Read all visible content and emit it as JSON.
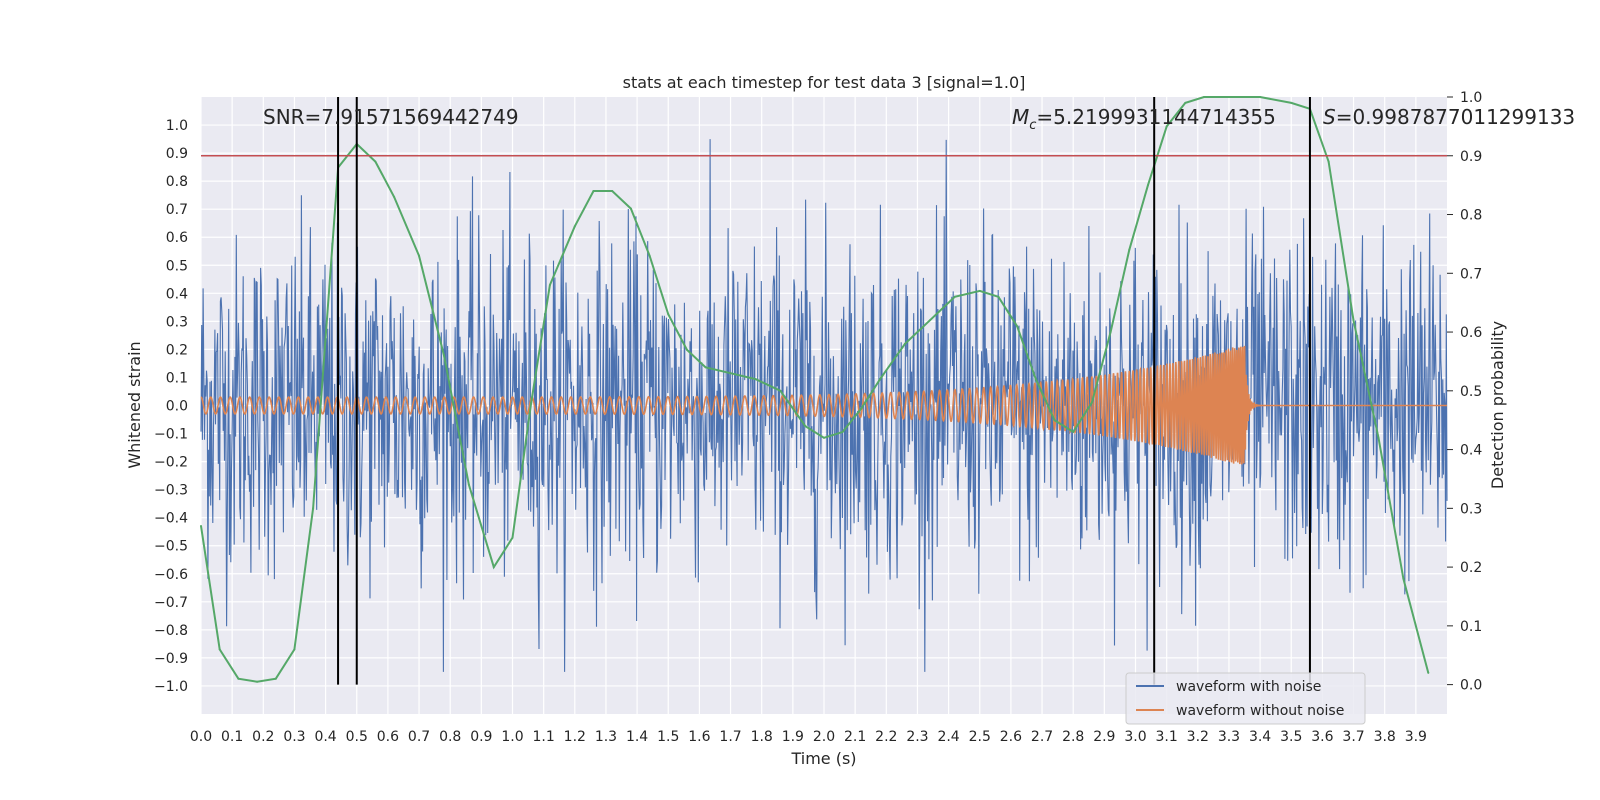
{
  "colors": {
    "noise": "#4c72b0",
    "clean": "#dd8452",
    "prob": "#55a868",
    "threshold": "#c44e52",
    "marker": "#000000",
    "background": "#eaeaf2",
    "grid": "#ffffff"
  },
  "chart_data": {
    "type": "line",
    "title": "stats at each timestep for test data 3 [signal=1.0]",
    "xlabel": "Time (s)",
    "ylabel": "Whitened strain",
    "y2label": "Detection probability",
    "xlim": [
      0.0,
      4.0
    ],
    "ylim": [
      -1.1,
      1.1
    ],
    "y2lim": [
      -0.05,
      1.0
    ],
    "xticks": [
      "0.0",
      "0.1",
      "0.2",
      "0.3",
      "0.4",
      "0.5",
      "0.6",
      "0.7",
      "0.8",
      "0.9",
      "1.0",
      "1.1",
      "1.2",
      "1.3",
      "1.4",
      "1.5",
      "1.6",
      "1.7",
      "1.8",
      "1.9",
      "2.0",
      "2.1",
      "2.2",
      "2.3",
      "2.4",
      "2.5",
      "2.6",
      "2.7",
      "2.8",
      "2.9",
      "3.0",
      "3.1",
      "3.2",
      "3.3",
      "3.4",
      "3.5",
      "3.6",
      "3.7",
      "3.8",
      "3.9"
    ],
    "yticks": [
      "1.0",
      "0.9",
      "0.8",
      "0.7",
      "0.6",
      "0.5",
      "0.4",
      "0.3",
      "0.2",
      "0.1",
      "0.0",
      "−0.1",
      "−0.2",
      "−0.3",
      "−0.4",
      "−0.5",
      "−0.6",
      "−0.7",
      "−0.8",
      "−0.9",
      "−1.0"
    ],
    "y2ticks": [
      "1.0",
      "0.9",
      "0.8",
      "0.7",
      "0.6",
      "0.5",
      "0.4",
      "0.3",
      "0.2",
      "0.1",
      "0.0"
    ],
    "threshold": 0.9,
    "vlines": [
      0.44,
      0.5,
      3.06,
      3.56
    ],
    "annotations": {
      "snr": "SNR=7.91571569442749",
      "mc_symbol": "M",
      "mc_sub": "c",
      "mc_value": "=5.2199931144714355",
      "s_symbol": "S",
      "s_value": "=0.9987877011299133"
    },
    "series": [
      {
        "name": "waveform with noise",
        "description": "dense noisy strain, amplitude mostly within ±0.6 with spikes to ±0.95",
        "amplitude_typical": 0.3,
        "amplitude_max": 0.95
      },
      {
        "name": "waveform without noise",
        "description": "chirp signal, amplitude 0.03 rising to 0.22, merger near 3.35 s then ringdown to 0",
        "amp_start": 0.03,
        "amp_peak": 0.22,
        "merger_time": 3.35,
        "freq_start_hz": 32,
        "freq_end_hz": 160
      },
      {
        "name": "Detection probability",
        "axis": "right",
        "x": [
          0.0,
          0.06,
          0.12,
          0.18,
          0.24,
          0.3,
          0.36,
          0.44,
          0.5,
          0.56,
          0.62,
          0.7,
          0.78,
          0.86,
          0.94,
          1.0,
          1.06,
          1.12,
          1.2,
          1.26,
          1.32,
          1.38,
          1.44,
          1.5,
          1.56,
          1.62,
          1.7,
          1.78,
          1.86,
          1.94,
          2.0,
          2.06,
          2.12,
          2.18,
          2.26,
          2.34,
          2.42,
          2.5,
          2.56,
          2.62,
          2.68,
          2.74,
          2.8,
          2.86,
          2.92,
          2.98,
          3.04,
          3.1,
          3.16,
          3.22,
          3.3,
          3.4,
          3.5,
          3.56,
          3.62,
          3.7,
          3.78,
          3.86,
          3.94
        ],
        "values": [
          0.27,
          0.06,
          0.01,
          0.005,
          0.01,
          0.06,
          0.3,
          0.88,
          0.92,
          0.89,
          0.83,
          0.73,
          0.56,
          0.34,
          0.2,
          0.25,
          0.48,
          0.68,
          0.78,
          0.84,
          0.84,
          0.81,
          0.73,
          0.63,
          0.57,
          0.54,
          0.53,
          0.52,
          0.5,
          0.44,
          0.42,
          0.43,
          0.47,
          0.52,
          0.58,
          0.62,
          0.66,
          0.67,
          0.66,
          0.61,
          0.52,
          0.45,
          0.43,
          0.48,
          0.6,
          0.74,
          0.85,
          0.95,
          0.99,
          1.0,
          1.0,
          1.0,
          0.99,
          0.98,
          0.89,
          0.62,
          0.42,
          0.18,
          0.02
        ]
      }
    ],
    "legend": {
      "position": "bottom-right",
      "entries": [
        "waveform with noise",
        "waveform without noise"
      ]
    }
  }
}
